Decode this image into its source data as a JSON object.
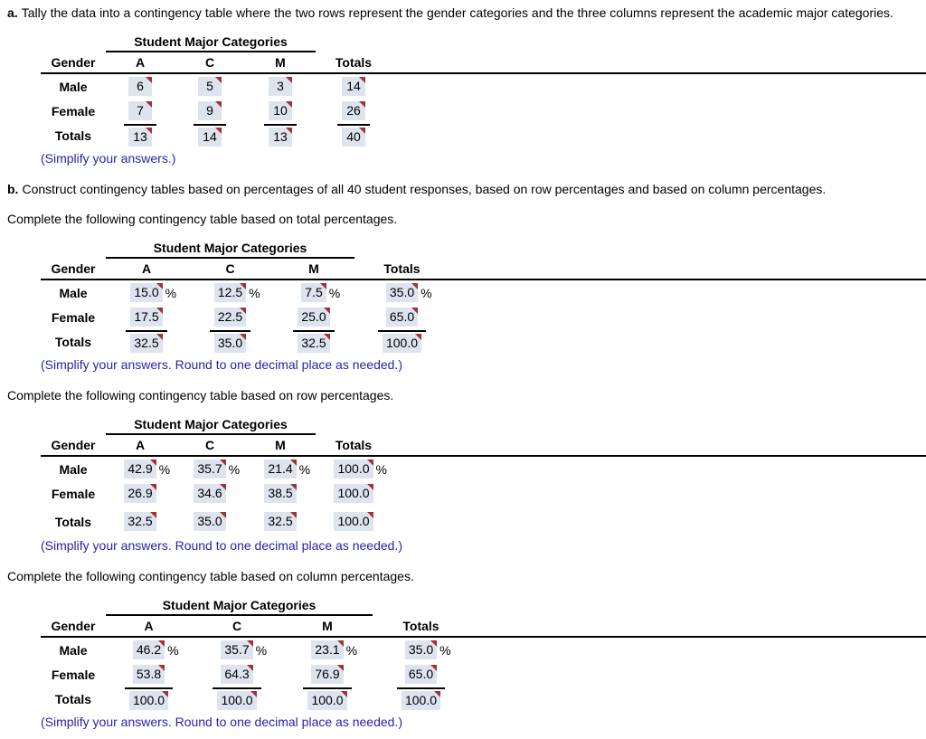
{
  "sections": {
    "part_a": {
      "label": "a.",
      "text": "Tally the data into a contingency table where the two rows represent the gender categories and the three columns represent the academic major categories."
    },
    "part_b": {
      "label": "b.",
      "text": "Construct contingency tables based on percentages of all 40 student responses, based on row percentages and based on column percentages."
    }
  },
  "colors": {
    "answer_box_bg": "#dde3ef",
    "marker_red": "#a03235",
    "note_blue": "#2424ad"
  },
  "tables": [
    {
      "name": "counts",
      "span_header": "Student Major Categories",
      "columns": [
        "Gender",
        "A",
        "C",
        "M",
        "Totals"
      ],
      "unit": "",
      "rows": [
        {
          "label": "Male",
          "values": [
            "6",
            "5",
            "3",
            "14"
          ]
        },
        {
          "label": "Female",
          "values": [
            "7",
            "9",
            "10",
            "26"
          ]
        },
        {
          "label": "Totals",
          "values": [
            "13",
            "14",
            "13",
            "40"
          ]
        }
      ],
      "note": "(Simplify your answers.)"
    },
    {
      "name": "total-percentages",
      "intro": "Complete the following contingency table based on total percentages.",
      "span_header": "Student Major Categories",
      "columns": [
        "Gender",
        "A",
        "C",
        "M",
        "Totals"
      ],
      "unit": "%",
      "rows": [
        {
          "label": "Male",
          "values": [
            "15.0",
            "12.5",
            "7.5",
            "35.0"
          ]
        },
        {
          "label": "Female",
          "values": [
            "17.5",
            "22.5",
            "25.0",
            "65.0"
          ]
        },
        {
          "label": "Totals",
          "values": [
            "32.5",
            "35.0",
            "32.5",
            "100.0"
          ]
        }
      ],
      "note": "(Simplify your answers. Round to one decimal place as needed.)"
    },
    {
      "name": "row-percentages",
      "intro": "Complete the following contingency table based on row percentages.",
      "span_header": "Student Major Categories",
      "columns": [
        "Gender",
        "A",
        "C",
        "M",
        "Totals"
      ],
      "unit": "%",
      "rows": [
        {
          "label": "Male",
          "values": [
            "42.9",
            "35.7",
            "21.4",
            "100.0"
          ]
        },
        {
          "label": "Female",
          "values": [
            "26.9",
            "34.6",
            "38.5",
            "100.0"
          ]
        },
        {
          "label": "Totals",
          "values": [
            "32.5",
            "35.0",
            "32.5",
            "100.0"
          ]
        }
      ],
      "note": "(Simplify your answers. Round to one decimal place as needed.)"
    },
    {
      "name": "column-percentages",
      "intro": "Complete the following contingency table based on column percentages.",
      "span_header": "Student Major Categories",
      "columns": [
        "Gender",
        "A",
        "C",
        "M",
        "Totals"
      ],
      "unit": "%",
      "rows": [
        {
          "label": "Male",
          "values": [
            "46.2",
            "35.7",
            "23.1",
            "35.0"
          ]
        },
        {
          "label": "Female",
          "values": [
            "53.8",
            "64.3",
            "76.9",
            "65.0"
          ]
        },
        {
          "label": "Totals",
          "values": [
            "100.0",
            "100.0",
            "100.0",
            "100.0"
          ]
        }
      ],
      "note": "(Simplify your answers. Round to one decimal place as needed.)"
    }
  ]
}
